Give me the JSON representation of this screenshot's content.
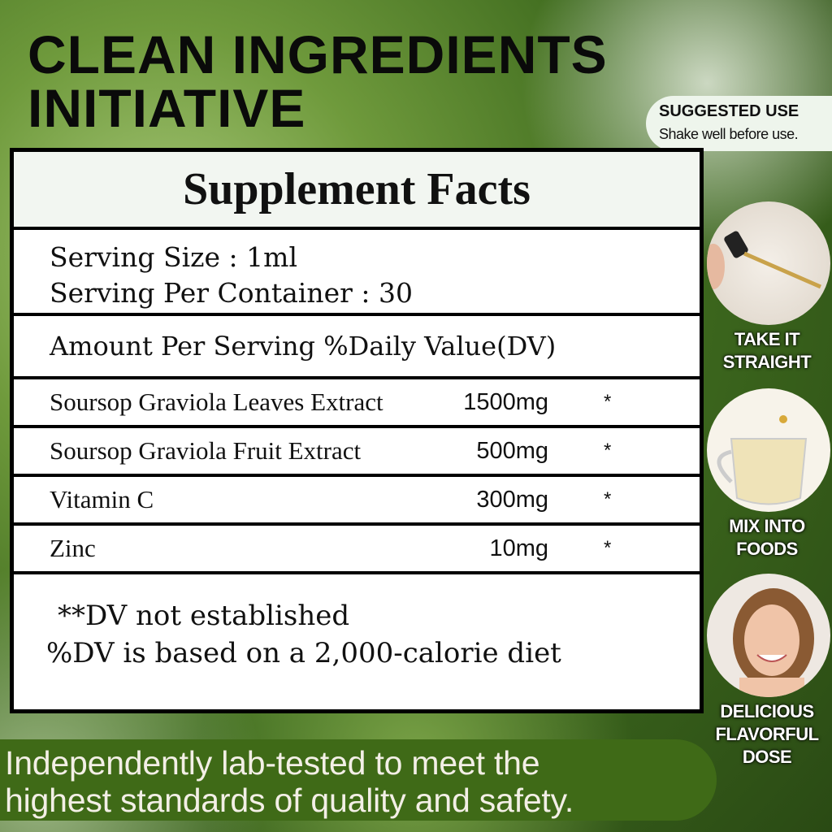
{
  "headline": {
    "line1": "CLEAN INGREDIENTS",
    "line2": "INITIATIVE"
  },
  "suggested_use": {
    "title": "SUGGESTED USE",
    "text": "Shake well  before use."
  },
  "facts": {
    "title": "Supplement Facts",
    "serving_size": "Serving Size : 1ml",
    "servings_per_container": "Serving Per Container : 30",
    "amount_header": "Amount Per Serving  %Daily Value(DV)",
    "ingredients": [
      {
        "name": "Soursop Graviola Leaves Extract",
        "amount": "1500mg",
        "dv": "*"
      },
      {
        "name": "Soursop Graviola Fruit Extract",
        "amount": "500mg",
        "dv": "*"
      },
      {
        "name": "Vitamin C",
        "amount": "300mg",
        "dv": "*"
      },
      {
        "name": "Zinc",
        "amount": "10mg",
        "dv": "*"
      }
    ],
    "note1": "**DV not established",
    "note2": "%DV is based on a 2,000-calorie diet"
  },
  "usage": [
    {
      "label": "TAKE IT STRAIGHT",
      "icon": "dropper-icon"
    },
    {
      "label": "MIX INTO FOODS",
      "icon": "tea-cup-icon"
    },
    {
      "label": "DELICIOUS FLAVORFUL DOSE",
      "icon": "smiling-woman-photo"
    }
  ],
  "banner": {
    "line1": "Independently lab-tested to meet the",
    "line2": "highest standards of quality and safety."
  },
  "colors": {
    "banner": "#3f6a17",
    "panel_border": "#000000"
  }
}
